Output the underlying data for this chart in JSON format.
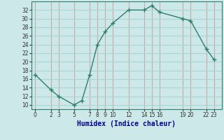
{
  "x": [
    0,
    2,
    3,
    5,
    6,
    7,
    8,
    9,
    10,
    12,
    14,
    15,
    16,
    19,
    20,
    22,
    23
  ],
  "y": [
    17,
    13.5,
    12,
    10,
    11,
    17,
    24,
    27,
    29,
    32,
    32,
    33,
    31.5,
    30,
    29.5,
    23,
    20.5
  ],
  "xticks": [
    0,
    2,
    3,
    5,
    7,
    8,
    9,
    10,
    12,
    14,
    15,
    16,
    19,
    20,
    22,
    23
  ],
  "xtick_labels": [
    "0",
    "2",
    "3",
    "5",
    "7",
    "8",
    "9",
    "10",
    "12",
    "14",
    "15",
    "16",
    "19",
    "20",
    "22",
    "23"
  ],
  "yticks": [
    10,
    12,
    14,
    16,
    18,
    20,
    22,
    24,
    26,
    28,
    30,
    32
  ],
  "ylim": [
    9,
    34
  ],
  "xlim": [
    -0.5,
    24
  ],
  "xlabel": "Humidex (Indice chaleur)",
  "line_color": "#2e7d6e",
  "bg_color": "#cce8e8",
  "grid_h_color": "#a8d4d4",
  "grid_v_color": "#c8aaa8",
  "spine_color": "#2e7d6e",
  "xlabel_color": "#00008b"
}
